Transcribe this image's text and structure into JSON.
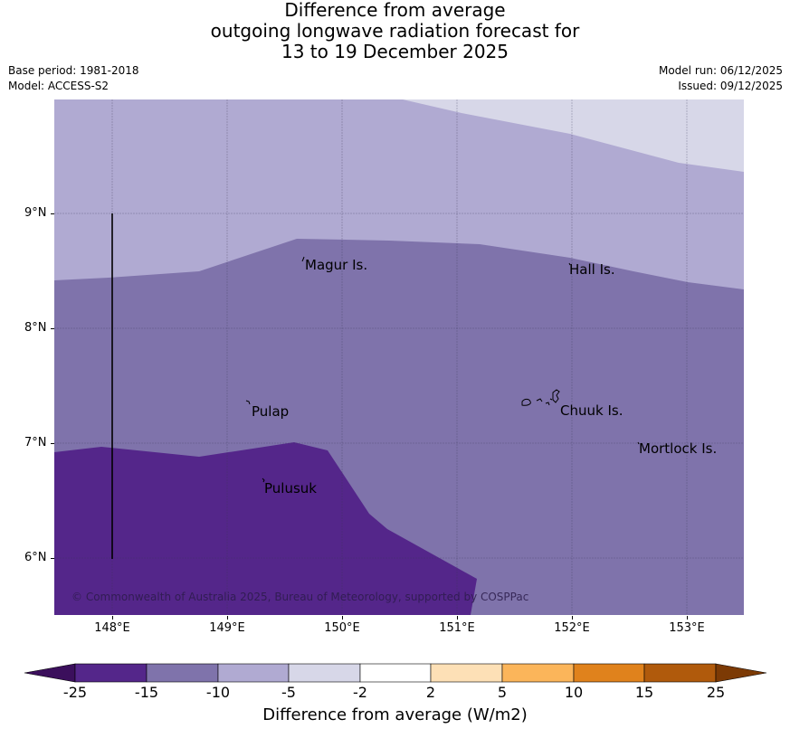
{
  "title": {
    "line1": "Difference from average",
    "line2": "outgoing longwave radiation forecast for",
    "line3": "13 to 19 December 2025"
  },
  "meta": {
    "base_period": "Base period: 1981-2018",
    "model": "Model: ACCESS-S2",
    "model_run": "Model run: 06/12/2025",
    "issued": "Issued: 09/12/2025"
  },
  "axes": {
    "lat_labels": [
      "9°N",
      "8°N",
      "7°N",
      "6°N"
    ],
    "lon_labels": [
      "148°E",
      "149°E",
      "150°E",
      "151°E",
      "152°E",
      "153°E"
    ]
  },
  "places": {
    "magur": "Magur Is.",
    "hall": "Hall Is.",
    "pulap": "Pulap",
    "chuuk": "Chuuk Is.",
    "mortlock": "Mortlock Is.",
    "pulusuk": "Pulusuk"
  },
  "copyright": "© Commonwealth of Australia 2025, Bureau of Meteorology, supported by COSPPac",
  "colorbar": {
    "title": "Difference from average (W/m2)",
    "tick_labels": [
      "-25",
      "-15",
      "-10",
      "-5",
      "-2",
      "2",
      "5",
      "10",
      "15",
      "25"
    ],
    "colors": {
      "lt_minus25": "#3b0f5c",
      "m25_m15": "#54268a",
      "m15_m10": "#7f73ab",
      "m10_m5": "#b0aad2",
      "m5_m2": "#d7d7e8",
      "m2_p2": "#ffffff",
      "p2_p5": "#fde0b6",
      "p5_p10": "#fbb55a",
      "p10_p15": "#e0821c",
      "p15_p25": "#b05a0c",
      "gt_p25": "#7c3a05"
    }
  }
}
